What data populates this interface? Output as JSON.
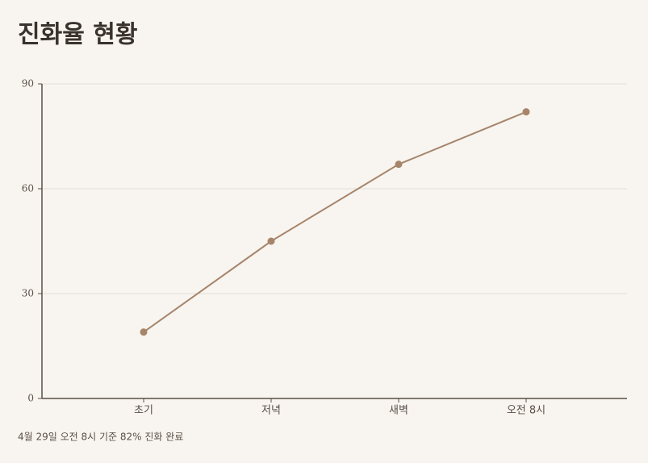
{
  "chart_data": {
    "type": "line",
    "title": "진화율 현황",
    "categories": [
      "초기",
      "저녁",
      "새벽",
      "오전 8시"
    ],
    "series": [
      {
        "name": "진화율",
        "color": "#a6856b",
        "values": [
          19,
          45,
          67,
          82
        ]
      }
    ],
    "ylim": [
      0,
      90
    ],
    "yticks": [
      0,
      30,
      60,
      90
    ],
    "grid": true,
    "footnote": "4월 29일 오전 8시 기준 82% 진화 완료"
  }
}
